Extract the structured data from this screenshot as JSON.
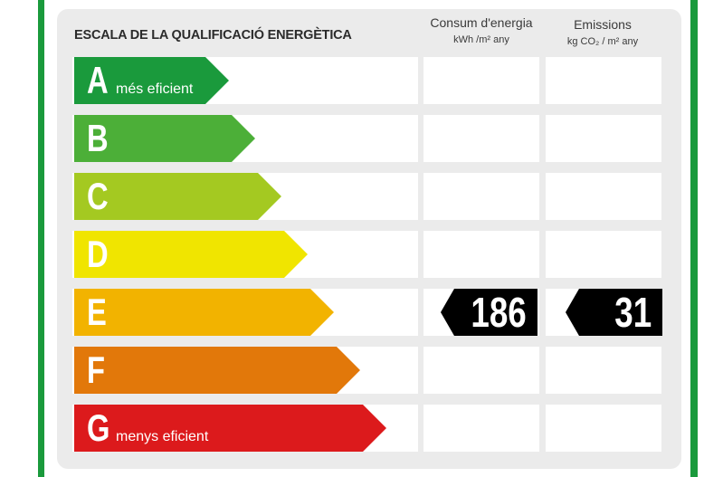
{
  "header": {
    "title": "ESCALA DE LA QUALIFICACIÓ ENERGÈTICA",
    "consumption": {
      "label": "Consum d'energia",
      "unit": "kWh /m² any"
    },
    "emissions": {
      "label": "Emissions",
      "unit": "kg CO₂ / m² any"
    }
  },
  "classes": [
    {
      "letter": "A",
      "note": "més eficient",
      "color": "#1a9a3c"
    },
    {
      "letter": "B",
      "note": "",
      "color": "#4caf38"
    },
    {
      "letter": "C",
      "note": "",
      "color": "#a4c921"
    },
    {
      "letter": "D",
      "note": "",
      "color": "#f0e500"
    },
    {
      "letter": "E",
      "note": "",
      "color": "#f2b300"
    },
    {
      "letter": "F",
      "note": "",
      "color": "#e2780a"
    },
    {
      "letter": "G",
      "note": "menys eficient",
      "color": "#dc1a1c"
    }
  ],
  "rating": {
    "class": "E",
    "consumption_value": "186",
    "emissions_value": "31"
  }
}
